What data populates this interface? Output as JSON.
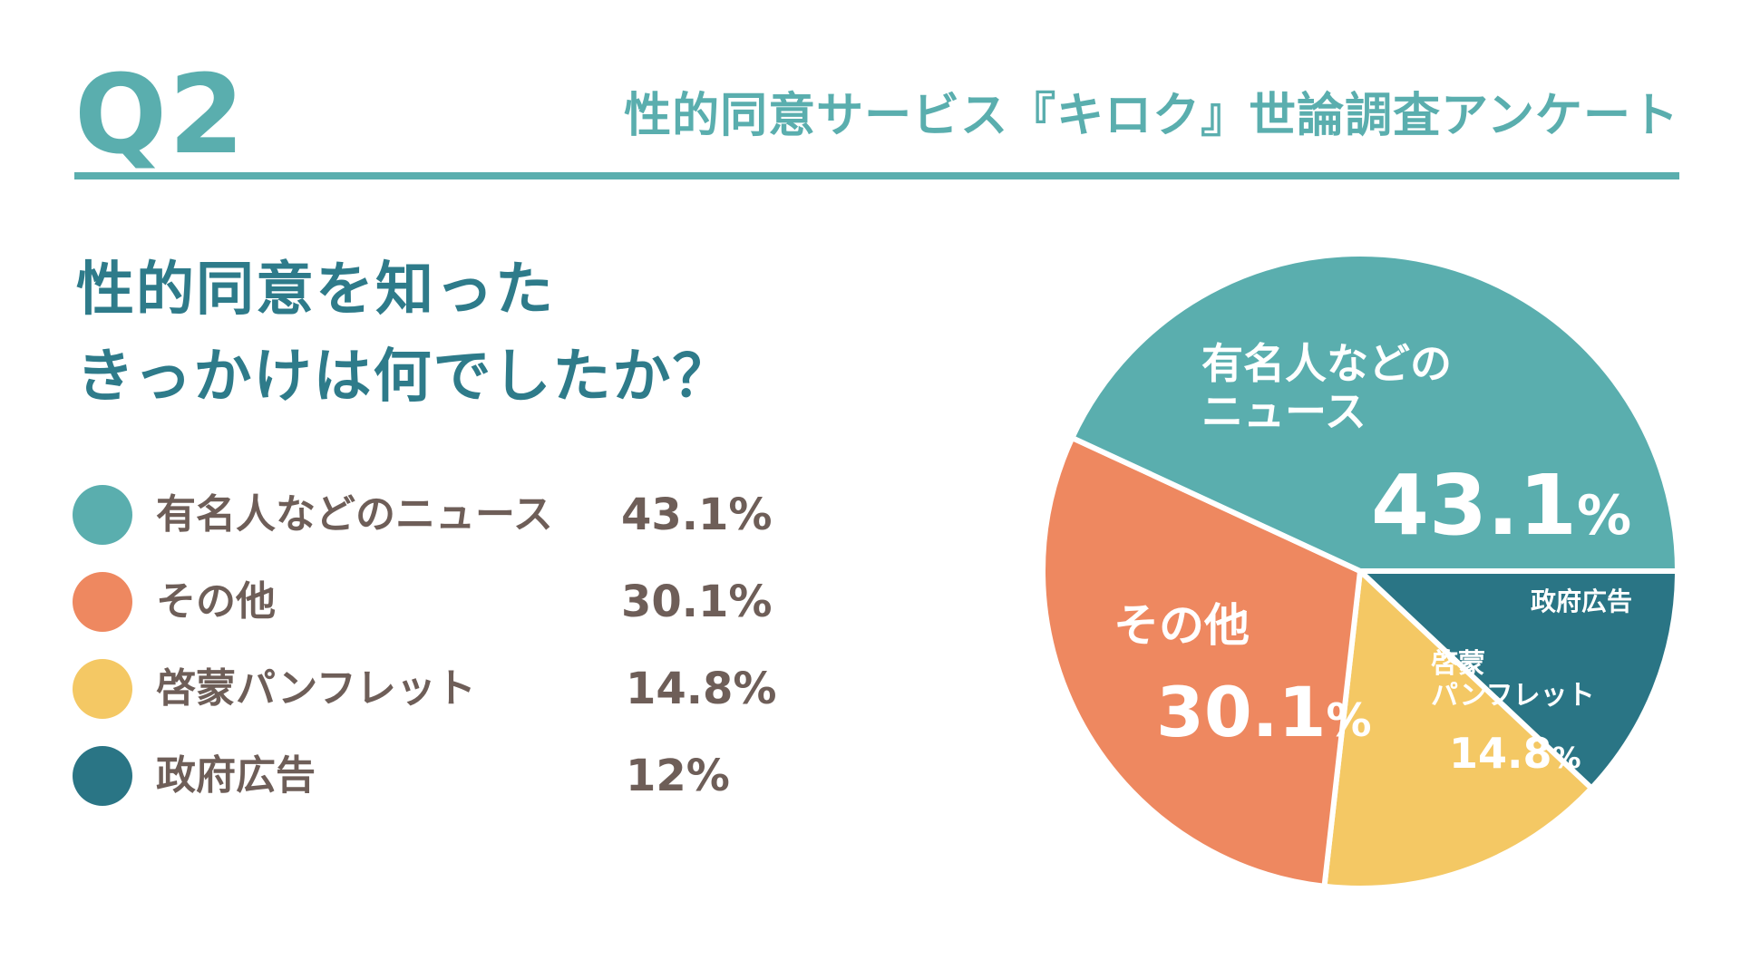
{
  "header": {
    "question_number": "Q2",
    "survey_title": "性的同意サービス『キロク』世論調査アンケート"
  },
  "question": {
    "line1": "性的同意を知った",
    "line2": "きっかけは何でしたか？"
  },
  "chart_data": {
    "type": "pie",
    "categories": [
      "有名人などのニュース",
      "その他",
      "啓蒙パンフレット",
      "政府広告"
    ],
    "values": [
      43.1,
      30.1,
      14.8,
      12
    ],
    "value_labels": [
      "43.1%",
      "30.1%",
      "14.8%",
      "12%"
    ],
    "colors": [
      "#5aaeae",
      "#ee8860",
      "#f4c864",
      "#2a7585"
    ],
    "slice_order_clockwise_from_3oclock": [
      "政府広告",
      "啓蒙パンフレット",
      "その他",
      "有名人などのニュース"
    ],
    "slice_labels": {
      "news": {
        "name_line1": "有名人などの",
        "name_line2": "ニュース",
        "value": "43.1",
        "unit": "%"
      },
      "other": {
        "name": "その他",
        "value": "30.1",
        "unit": "%"
      },
      "pamphlet": {
        "name_line1": "啓蒙",
        "name_line2": "パンフレット",
        "value": "14.8",
        "unit": "%"
      },
      "gov": {
        "name": "政府広告"
      }
    },
    "legend_position": "left"
  },
  "legend": [
    {
      "label": "有名人などのニュース",
      "value": "43.1%",
      "color": "#5aaeae"
    },
    {
      "label": "その他",
      "value": "30.1%",
      "color": "#ee8860"
    },
    {
      "label": "啓蒙パンフレット",
      "value": "14.8%",
      "color": "#f4c864"
    },
    {
      "label": "政府広告",
      "value": "12%",
      "color": "#2a7585"
    }
  ]
}
